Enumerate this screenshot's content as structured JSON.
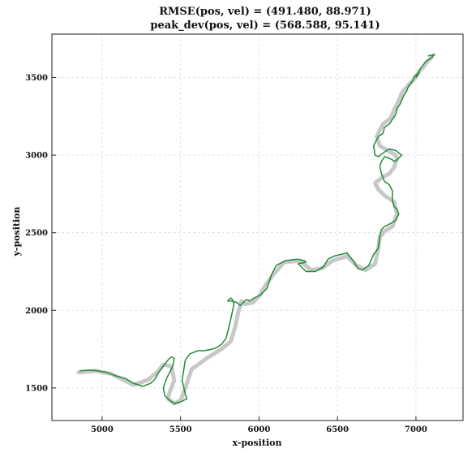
{
  "chart_data": {
    "type": "line",
    "title": "RMSE(pos, vel) = (491.480, 88.971)",
    "subtitle": "peak_dev(pos, vel) = (568.588, 95.141)",
    "xlabel": "x-position",
    "ylabel": "y-position",
    "xlim": [
      4680,
      7300
    ],
    "ylim": [
      1290,
      3780
    ],
    "xticks": [
      "5000",
      "5500",
      "6000",
      "6500",
      "7000"
    ],
    "yticks": [
      "1500",
      "2000",
      "2500",
      "3000",
      "3500"
    ],
    "grid": true,
    "colors": {
      "reference": "#c8c8c8",
      "estimate": "#228b3a"
    },
    "series": [
      {
        "role": "reference",
        "x": [
          4850,
          4960,
          5060,
          5200,
          5290,
          5350,
          5390,
          5440,
          5460,
          5430,
          5420,
          5460,
          5500,
          5530,
          5570,
          5680,
          5760,
          5820,
          5850,
          5870,
          5890,
          5910,
          5960,
          6000,
          6040,
          6090,
          6160,
          6260,
          6330,
          6400,
          6470,
          6560,
          6620,
          6680,
          6740,
          6760,
          6770,
          6800,
          6850,
          6880,
          6860,
          6800,
          6760,
          6740,
          6790,
          6830,
          6860,
          6880,
          6870,
          6820,
          6770,
          6750,
          6790,
          6840,
          6860,
          6890,
          6910,
          6950,
          6990,
          7020,
          7050,
          7070,
          7100
        ],
        "y": [
          1600,
          1610,
          1590,
          1520,
          1550,
          1600,
          1650,
          1640,
          1550,
          1470,
          1430,
          1400,
          1420,
          1500,
          1620,
          1700,
          1750,
          1800,
          1900,
          2000,
          2060,
          2040,
          2050,
          2090,
          2160,
          2230,
          2310,
          2320,
          2260,
          2270,
          2320,
          2350,
          2290,
          2260,
          2300,
          2400,
          2470,
          2510,
          2540,
          2620,
          2700,
          2740,
          2780,
          2820,
          2860,
          2880,
          2920,
          2980,
          3000,
          3030,
          3060,
          3120,
          3200,
          3240,
          3290,
          3350,
          3400,
          3450,
          3490,
          3540,
          3570,
          3600,
          3630
        ]
      },
      {
        "role": "estimate",
        "x": [
          4860,
          4920,
          4970,
          5030,
          5080,
          5150,
          5200,
          5260,
          5310,
          5340,
          5360,
          5390,
          5420,
          5440,
          5460,
          5450,
          5410,
          5390,
          5400,
          5430,
          5460,
          5500,
          5540,
          5530,
          5510,
          5530,
          5560,
          5610,
          5650,
          5700,
          5730,
          5760,
          5790,
          5810,
          5830,
          5840,
          5830,
          5820,
          5800,
          5830,
          5860,
          5880,
          5920,
          5940,
          5970,
          6010,
          6050,
          6070,
          6080,
          6110,
          6170,
          6240,
          6290,
          6300,
          6250,
          6300,
          6360,
          6410,
          6440,
          6480,
          6520,
          6560,
          6600,
          6630,
          6660,
          6700,
          6730,
          6760,
          6770,
          6780,
          6800,
          6840,
          6870,
          6890,
          6880,
          6860,
          6850,
          6850,
          6830,
          6800,
          6780,
          6770,
          6780,
          6800,
          6830,
          6850,
          6860,
          6880,
          6910,
          6870,
          6830,
          6800,
          6760,
          6740,
          6730,
          6760,
          6790,
          6800,
          6830,
          6850,
          6870,
          6880,
          6900,
          6920,
          6940,
          6950,
          6980,
          6990,
          7020,
          7000,
          7030,
          7060,
          7100,
          7120,
          7080
        ],
        "y": [
          1610,
          1615,
          1610,
          1600,
          1580,
          1560,
          1530,
          1510,
          1530,
          1560,
          1600,
          1640,
          1680,
          1700,
          1690,
          1640,
          1560,
          1500,
          1450,
          1420,
          1400,
          1410,
          1430,
          1460,
          1550,
          1680,
          1720,
          1740,
          1740,
          1750,
          1760,
          1780,
          1820,
          1900,
          1990,
          2040,
          2070,
          2080,
          2060,
          2060,
          2050,
          2030,
          2070,
          2060,
          2080,
          2100,
          2140,
          2200,
          2230,
          2290,
          2320,
          2330,
          2320,
          2310,
          2300,
          2250,
          2250,
          2280,
          2330,
          2350,
          2360,
          2370,
          2320,
          2270,
          2260,
          2290,
          2360,
          2400,
          2480,
          2520,
          2540,
          2560,
          2580,
          2620,
          2650,
          2670,
          2710,
          2770,
          2810,
          2830,
          2880,
          2930,
          2960,
          2990,
          2980,
          2970,
          2960,
          2970,
          3000,
          3030,
          3040,
          3020,
          2990,
          3000,
          3060,
          3120,
          3140,
          3180,
          3200,
          3230,
          3260,
          3300,
          3330,
          3380,
          3410,
          3440,
          3480,
          3510,
          3530,
          3500,
          3560,
          3600,
          3630,
          3650,
          3640
        ]
      }
    ]
  }
}
